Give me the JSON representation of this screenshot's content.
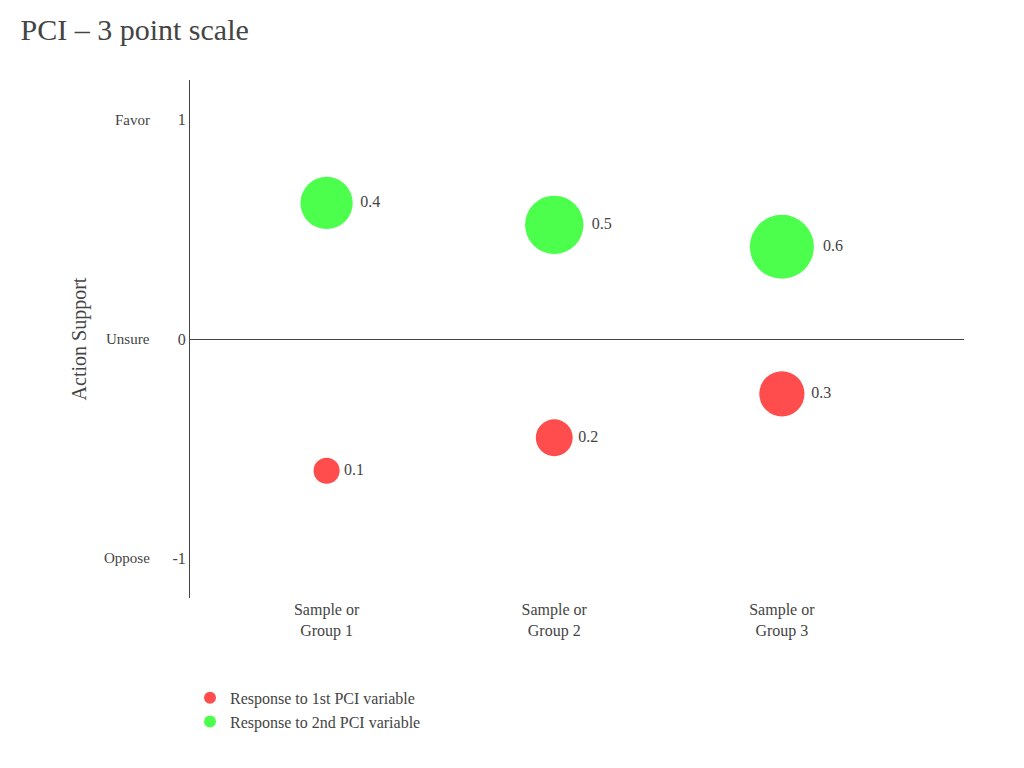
{
  "chart_data": {
    "type": "bubble",
    "title": "PCI – 3 point scale",
    "y_label": "Action Support",
    "categories": [
      "Sample or\nGroup 1",
      "Sample or\nGroup 2",
      "Sample or\nGroup 3"
    ],
    "series": [
      {
        "name": "Response to 1st PCI variable",
        "color": "#FF0000",
        "values": [
          -0.6,
          -0.45,
          -0.25
        ],
        "sizes": [
          0.1,
          0.2,
          0.3
        ]
      },
      {
        "name": "Response to 2nd PCI variable",
        "color": "#00FF00",
        "values": [
          0.62,
          0.52,
          0.42
        ],
        "sizes": [
          0.4,
          0.5,
          0.6
        ]
      }
    ],
    "ylim": [
      -1.18,
      1.18
    ],
    "yticks": [
      -1,
      0,
      1
    ],
    "annotations": [
      {
        "text": "Oppose",
        "y": -1
      },
      {
        "text": "Unsure",
        "y": 0
      },
      {
        "text": "Favor",
        "y": 1
      }
    ],
    "data_labels": true,
    "grid": false,
    "legend": "lower left"
  }
}
